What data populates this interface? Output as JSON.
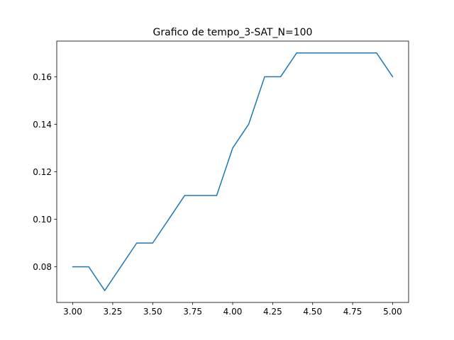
{
  "chart_data": {
    "type": "line",
    "title": "Grafico de tempo_3-SAT_N=100",
    "xlabel": "",
    "ylabel": "",
    "x": [
      3.0,
      3.1,
      3.2,
      3.3,
      3.4,
      3.5,
      3.6,
      3.7,
      3.8,
      3.9,
      4.0,
      4.1,
      4.2,
      4.3,
      4.4,
      4.5,
      4.6,
      4.7,
      4.8,
      4.9,
      5.0
    ],
    "series": [
      {
        "values": [
          0.08,
          0.08,
          0.07,
          0.08,
          0.09,
          0.09,
          0.1,
          0.11,
          0.11,
          0.11,
          0.13,
          0.14,
          0.16,
          0.16,
          0.17,
          0.17,
          0.17,
          0.17,
          0.17,
          0.17,
          0.16
        ],
        "color": "#1f77b4"
      }
    ],
    "xlim": [
      2.9,
      5.1
    ],
    "ylim": [
      0.065,
      0.175
    ],
    "xticks": [
      3.0,
      3.25,
      3.5,
      3.75,
      4.0,
      4.25,
      4.5,
      4.75,
      5.0
    ],
    "xtick_labels": [
      "3.00",
      "3.25",
      "3.50",
      "3.75",
      "4.00",
      "4.25",
      "4.50",
      "4.75",
      "5.00"
    ],
    "yticks": [
      0.08,
      0.1,
      0.12,
      0.14,
      0.16
    ],
    "ytick_labels": [
      "0.08",
      "0.10",
      "0.12",
      "0.14",
      "0.16"
    ],
    "grid": false,
    "legend": "none"
  }
}
